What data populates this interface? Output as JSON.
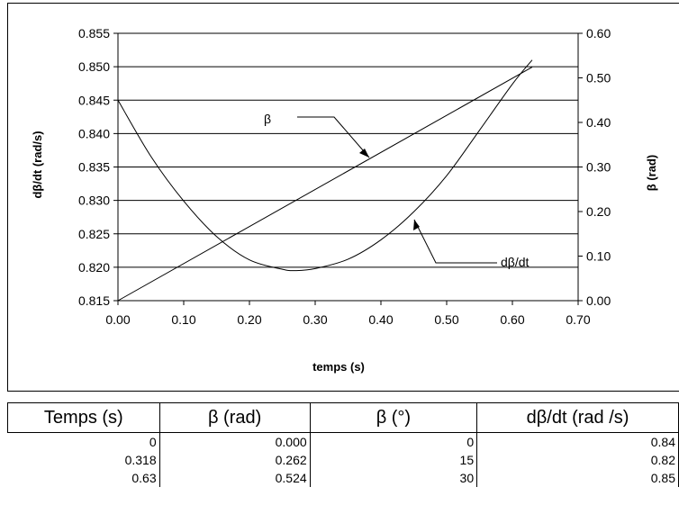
{
  "chart_data": {
    "type": "line",
    "xlabel": "temps (s)",
    "ylabel_left": "dβ/dt (rad/s)",
    "ylabel_right": "β (rad)",
    "xlim": [
      0,
      0.7
    ],
    "ylim_left": [
      0.815,
      0.855
    ],
    "ylim_right": [
      0,
      0.6
    ],
    "x_ticks": [
      "0.00",
      "0.10",
      "0.20",
      "0.30",
      "0.40",
      "0.50",
      "0.60",
      "0.70"
    ],
    "y_ticks_left": [
      "0.815",
      "0.820",
      "0.825",
      "0.830",
      "0.835",
      "0.840",
      "0.845",
      "0.850",
      "0.855"
    ],
    "y_ticks_right": [
      "0.00",
      "0.10",
      "0.20",
      "0.30",
      "0.40",
      "0.50",
      "0.60"
    ],
    "grid": true,
    "series": [
      {
        "name": "β",
        "axis": "right",
        "x": [
          0,
          0.63
        ],
        "y": [
          0,
          0.524
        ]
      },
      {
        "name": "dβ/dt",
        "axis": "left",
        "x": [
          0,
          0.05,
          0.1,
          0.15,
          0.2,
          0.25,
          0.27,
          0.3,
          0.35,
          0.4,
          0.45,
          0.5,
          0.55,
          0.6,
          0.63
        ],
        "y": [
          0.845,
          0.8366,
          0.8299,
          0.8246,
          0.8211,
          0.8197,
          0.8195,
          0.8198,
          0.8212,
          0.8241,
          0.8283,
          0.8337,
          0.8405,
          0.8474,
          0.851
        ]
      }
    ],
    "annotations": [
      "β",
      "dβ/dt"
    ]
  },
  "table": {
    "headers": [
      "Temps (s)",
      "β (rad)",
      "β (°)",
      "dβ/dt (rad /s)"
    ],
    "rows": [
      [
        "0",
        "0.000",
        "0",
        "0.84"
      ],
      [
        "0.318",
        "0.262",
        "15",
        "0.82"
      ],
      [
        "0.63",
        "0.524",
        "30",
        "0.85"
      ]
    ]
  }
}
